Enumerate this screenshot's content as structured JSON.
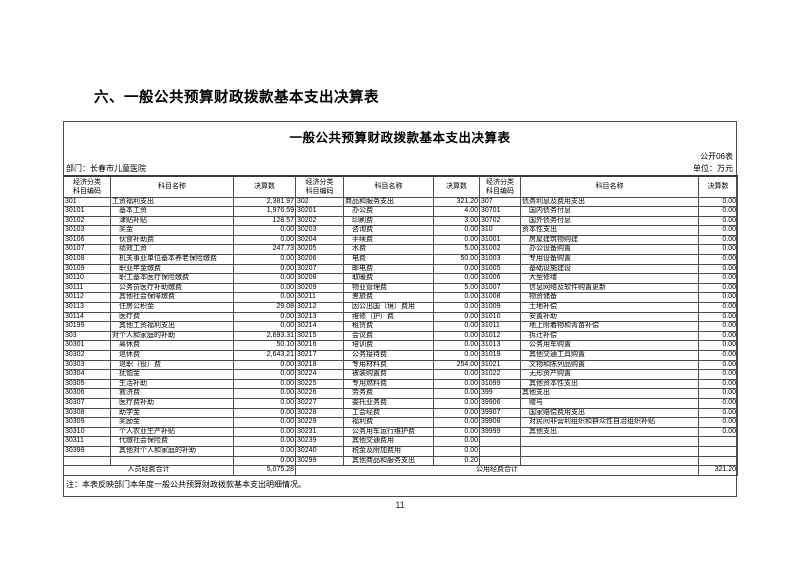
{
  "page": {
    "heading": "六、一般公共预算财政拨款基本支出决算表",
    "page_number": "11"
  },
  "sheet": {
    "title": "一般公共预算财政拨款基本支出决算表",
    "table_code": "公开06表",
    "department": "部门：长春市儿童医院",
    "unit": "单位：万元",
    "note": "注：本表反映部门本年度一般公共预算财政拨款基本支出明细情况。",
    "header": {
      "code": "经济分类\n科目编码",
      "name": "科目名称",
      "value": "决算数"
    },
    "totals": {
      "personnel_label": "人员经费合计",
      "personnel_value": "5,075.28",
      "public_label": "公用经费合计",
      "public_value": "321.20"
    },
    "rows": [
      [
        "301",
        "工资福利支出",
        "2,381.97",
        "302",
        "商品和服务支出",
        "321.20",
        "307",
        "债务利息及费用支出",
        "0.00"
      ],
      [
        "30101",
        "　基本工资",
        "1,976.59",
        "30201",
        "　办公费",
        "4.00",
        "30701",
        "　国内债务付息",
        "0.00"
      ],
      [
        "30102",
        "　津贴补贴",
        "128.57",
        "30202",
        "　印刷费",
        "3.00",
        "30702",
        "　国外债务付息",
        "0.00"
      ],
      [
        "30103",
        "　奖金",
        "0.00",
        "30203",
        "　咨询费",
        "0.00",
        "310",
        "资本性支出",
        "0.00"
      ],
      [
        "30106",
        "　伙食补助费",
        "0.00",
        "30204",
        "　手续费",
        "0.00",
        "31001",
        "　房屋建筑物购建",
        "0.00"
      ],
      [
        "30107",
        "　绩效工资",
        "247.73",
        "30205",
        "　水费",
        "5.00",
        "31002",
        "　办公设备购置",
        "0.00"
      ],
      [
        "30108",
        "　机关事业单位基本养老保险缴费",
        "0.00",
        "30206",
        "　电费",
        "50.00",
        "31003",
        "　专用设备购置",
        "0.00"
      ],
      [
        "30109",
        "　职业年金缴费",
        "0.00",
        "30207",
        "　邮电费",
        "0.00",
        "31005",
        "　基础设施建设",
        "0.00"
      ],
      [
        "30110",
        "　职工基本医疗保险缴费",
        "0.00",
        "30208",
        "　取暖费",
        "0.00",
        "31006",
        "　大型修缮",
        "0.00"
      ],
      [
        "30111",
        "　公务员医疗补助缴费",
        "0.00",
        "30209",
        "　物业管理费",
        "5.00",
        "31007",
        "　信息网络及软件购置更新",
        "0.00"
      ],
      [
        "30112",
        "　其他社会保障缴费",
        "0.00",
        "30211",
        "　差旅费",
        "0.00",
        "31008",
        "　物资储备",
        "0.00"
      ],
      [
        "30113",
        "　住房公积金",
        "29.08",
        "30212",
        "　因公出国（境）费用",
        "0.00",
        "31009",
        "　土地补偿",
        "0.00"
      ],
      [
        "30114",
        "　医疗费",
        "0.00",
        "30213",
        "　维修（护）费",
        "0.00",
        "31010",
        "　安置补助",
        "0.00"
      ],
      [
        "30199",
        "　其他工资福利支出",
        "0.00",
        "30214",
        "　租赁费",
        "0.00",
        "31011",
        "　地上附着物和青苗补偿",
        "0.00"
      ],
      [
        "303",
        "对个人和家庭的补助",
        "2,693.31",
        "30215",
        "　会议费",
        "0.00",
        "31012",
        "　拆迁补偿",
        "0.00"
      ],
      [
        "30301",
        "　离休费",
        "50.10",
        "30216",
        "　培训费",
        "0.00",
        "31013",
        "　公务用车购置",
        "0.00"
      ],
      [
        "30302",
        "　退休费",
        "2,643.21",
        "30217",
        "　公务接待费",
        "0.00",
        "31019",
        "　其他交通工具购置",
        "0.00"
      ],
      [
        "30303",
        "　退职（役）费",
        "0.00",
        "30218",
        "　专用材料费",
        "254.00",
        "31021",
        "　文物和陈列品购置",
        "0.00"
      ],
      [
        "30304",
        "　抚恤金",
        "0.00",
        "30224",
        "　被装购置费",
        "0.00",
        "31022",
        "　无形资产购置",
        "0.00"
      ],
      [
        "30305",
        "　生活补助",
        "0.00",
        "30225",
        "　专用燃料费",
        "0.00",
        "31099",
        "　其他资本性支出",
        "0.00"
      ],
      [
        "30306",
        "　救济费",
        "0.00",
        "30226",
        "　劳务费",
        "0.00",
        "399",
        "其他支出",
        "0.00"
      ],
      [
        "30307",
        "　医疗费补助",
        "0.00",
        "30227",
        "　委托业务费",
        "0.00",
        "39906",
        "　赠与",
        "0.00"
      ],
      [
        "30308",
        "　助学金",
        "0.00",
        "30228",
        "　工会经费",
        "0.00",
        "39907",
        "　国家赔偿费用支出",
        "0.00"
      ],
      [
        "30309",
        "　奖励金",
        "0.00",
        "30229",
        "　福利费",
        "0.00",
        "39908",
        "　对民间非营利组织和群众性自治组织补贴",
        "0.00"
      ],
      [
        "30310",
        "　个人农业生产补贴",
        "0.00",
        "30231",
        "　公务用车运行维护费",
        "0.00",
        "39999",
        "　其他支出",
        "0.00"
      ],
      [
        "30311",
        "　代缴社会保险费",
        "0.00",
        "30239",
        "　其他交通费用",
        "0.00",
        "",
        "",
        ""
      ],
      [
        "30399",
        "　其他对个人和家庭的补助",
        "0.00",
        "30240",
        "　税金及附加费用",
        "0.00",
        "",
        "",
        ""
      ],
      [
        "",
        "",
        "0.00",
        "30299",
        "　其他商品和服务支出",
        "0.20",
        "",
        "",
        ""
      ]
    ]
  }
}
